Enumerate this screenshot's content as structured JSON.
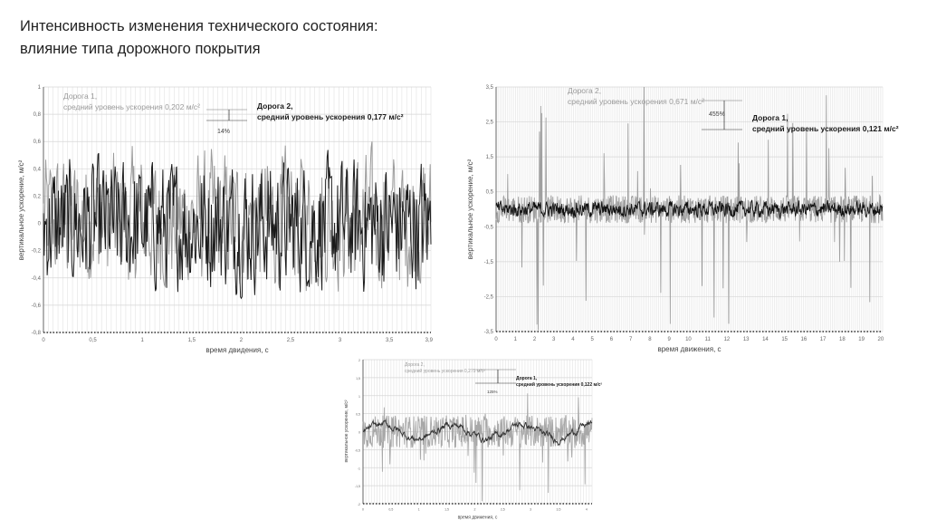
{
  "slide": {
    "title_line1": "Интенсивность изменения технического состояния:",
    "title_line2": "влияние типа дорожного покрытия"
  },
  "chart_data": [
    {
      "type": "line",
      "xlabel": "время двидения, с",
      "ylabel": "вертикальное ускорение, м/с²",
      "xlim": [
        0,
        3.92
      ],
      "ylim": [
        -0.8,
        1
      ],
      "xticks": [
        0,
        0.5,
        1,
        1.5,
        2,
        2.5,
        3,
        3.5,
        3.9
      ],
      "xtick_labels": [
        "0",
        "0,5",
        "1",
        "1,5",
        "2",
        "2,5",
        "3",
        "3,5",
        "3,9"
      ],
      "yticks": [
        -0.8,
        -0.6,
        -0.4,
        -0.2,
        0,
        0.2,
        0.4,
        0.6,
        0.8,
        1
      ],
      "ytick_labels": [
        "-0,8",
        "-0,6",
        "-0,4",
        "-0,2",
        "0",
        "0,2",
        "0,4",
        "0,6",
        "0,8",
        "1"
      ],
      "grid": true,
      "series": [
        {
          "name": "Дорога 1",
          "color": "#9a9a9a",
          "mean_level": 0.202,
          "typical_range": [
            -0.6,
            0.7
          ]
        },
        {
          "name": "Дорога 2",
          "color": "#1a1a1a",
          "mean_level": 0.177,
          "typical_range": [
            -0.65,
            0.6
          ]
        }
      ],
      "annotations": [
        {
          "line1": "Дорога 1,",
          "line2": "средний уровень ускорения 0,202 м/с²",
          "color": "#9a9a9a",
          "bold": false
        },
        {
          "line1": "Дорога 2,",
          "line2": "средний уровень ускорения 0,177 м/с²",
          "color": "#1a1a1a",
          "bold": true
        }
      ],
      "difference_label": "14%"
    },
    {
      "type": "line",
      "xlabel": "время движения, с",
      "ylabel": "вертикальное ускорение, м/с²",
      "xlim": [
        0,
        20.1
      ],
      "ylim": [
        -3.5,
        3.5
      ],
      "xticks": [
        0,
        1,
        2,
        3,
        4,
        5,
        6,
        7,
        8,
        9,
        10,
        11,
        12,
        13,
        14,
        15,
        16,
        17,
        18,
        19,
        20
      ],
      "xtick_labels": [
        "0",
        "1",
        "2",
        "3",
        "4",
        "5",
        "6",
        "7",
        "8",
        "9",
        "10",
        "11",
        "12",
        "13",
        "14",
        "15",
        "16",
        "17",
        "18",
        "19",
        "20"
      ],
      "yticks": [
        -3.5,
        -2.5,
        -1.5,
        -0.5,
        0.5,
        1.5,
        2.5,
        3.5
      ],
      "ytick_labels": [
        "-3,5",
        "-2,5",
        "-1,5",
        "-0,5",
        "0,5",
        "1,5",
        "2,5",
        "3,5"
      ],
      "grid": true,
      "series": [
        {
          "name": "Дорога 2",
          "color": "#a0a0a0",
          "mean_level": 0.671,
          "typical_range": [
            -3.4,
            3.5
          ]
        },
        {
          "name": "Дорога 1",
          "color": "#111111",
          "mean_level": 0.121,
          "typical_range": [
            -0.3,
            0.3
          ]
        }
      ],
      "annotations": [
        {
          "line1": "Дорога 2,",
          "line2": "средний уровень ускорения 0,671 м/с²",
          "color": "#9a9a9a",
          "bold": false
        },
        {
          "line1": "Дорога 1,",
          "line2": "средний уровень ускорения 0,121 м/с²",
          "color": "#1a1a1a",
          "bold": true
        }
      ],
      "difference_label": "455%"
    },
    {
      "type": "line",
      "xlabel": "время движения, с",
      "ylabel": "вертикальное ускорение, м/с²",
      "xlim": [
        0,
        4.1
      ],
      "ylim": [
        -2,
        2
      ],
      "xticks": [
        0,
        0.5,
        1,
        1.5,
        2,
        2.5,
        3,
        3.5,
        4
      ],
      "xtick_labels": [
        "0",
        "0,5",
        "1",
        "1,5",
        "2",
        "2,5",
        "3",
        "3,5",
        "4"
      ],
      "yticks": [
        -2,
        -1.5,
        -1,
        -0.5,
        0,
        0.5,
        1,
        1.5,
        2
      ],
      "ytick_labels": [
        "-2",
        "-1,5",
        "-1",
        "-0,5",
        "0",
        "0,5",
        "1",
        "1,5",
        "2"
      ],
      "grid": true,
      "series": [
        {
          "name": "Дорога 2",
          "color": "#a8a8a8",
          "mean_level": 0.275,
          "typical_range": [
            -1.8,
            1.2
          ]
        },
        {
          "name": "Дорога 1",
          "color": "#333333",
          "mean_level": 0.122,
          "typical_range": [
            -0.4,
            0.6
          ]
        }
      ],
      "annotations": [
        {
          "line1": "Дорога 2,",
          "line2": "средний уровень ускорения 0,275 м/с²",
          "color": "#9a9a9a",
          "bold": false
        },
        {
          "line1": "Дорога 1,",
          "line2": "средний уровень ускорения 0,122 м/с²",
          "color": "#1a1a1a",
          "bold": true
        }
      ],
      "difference_label": "125%"
    }
  ]
}
